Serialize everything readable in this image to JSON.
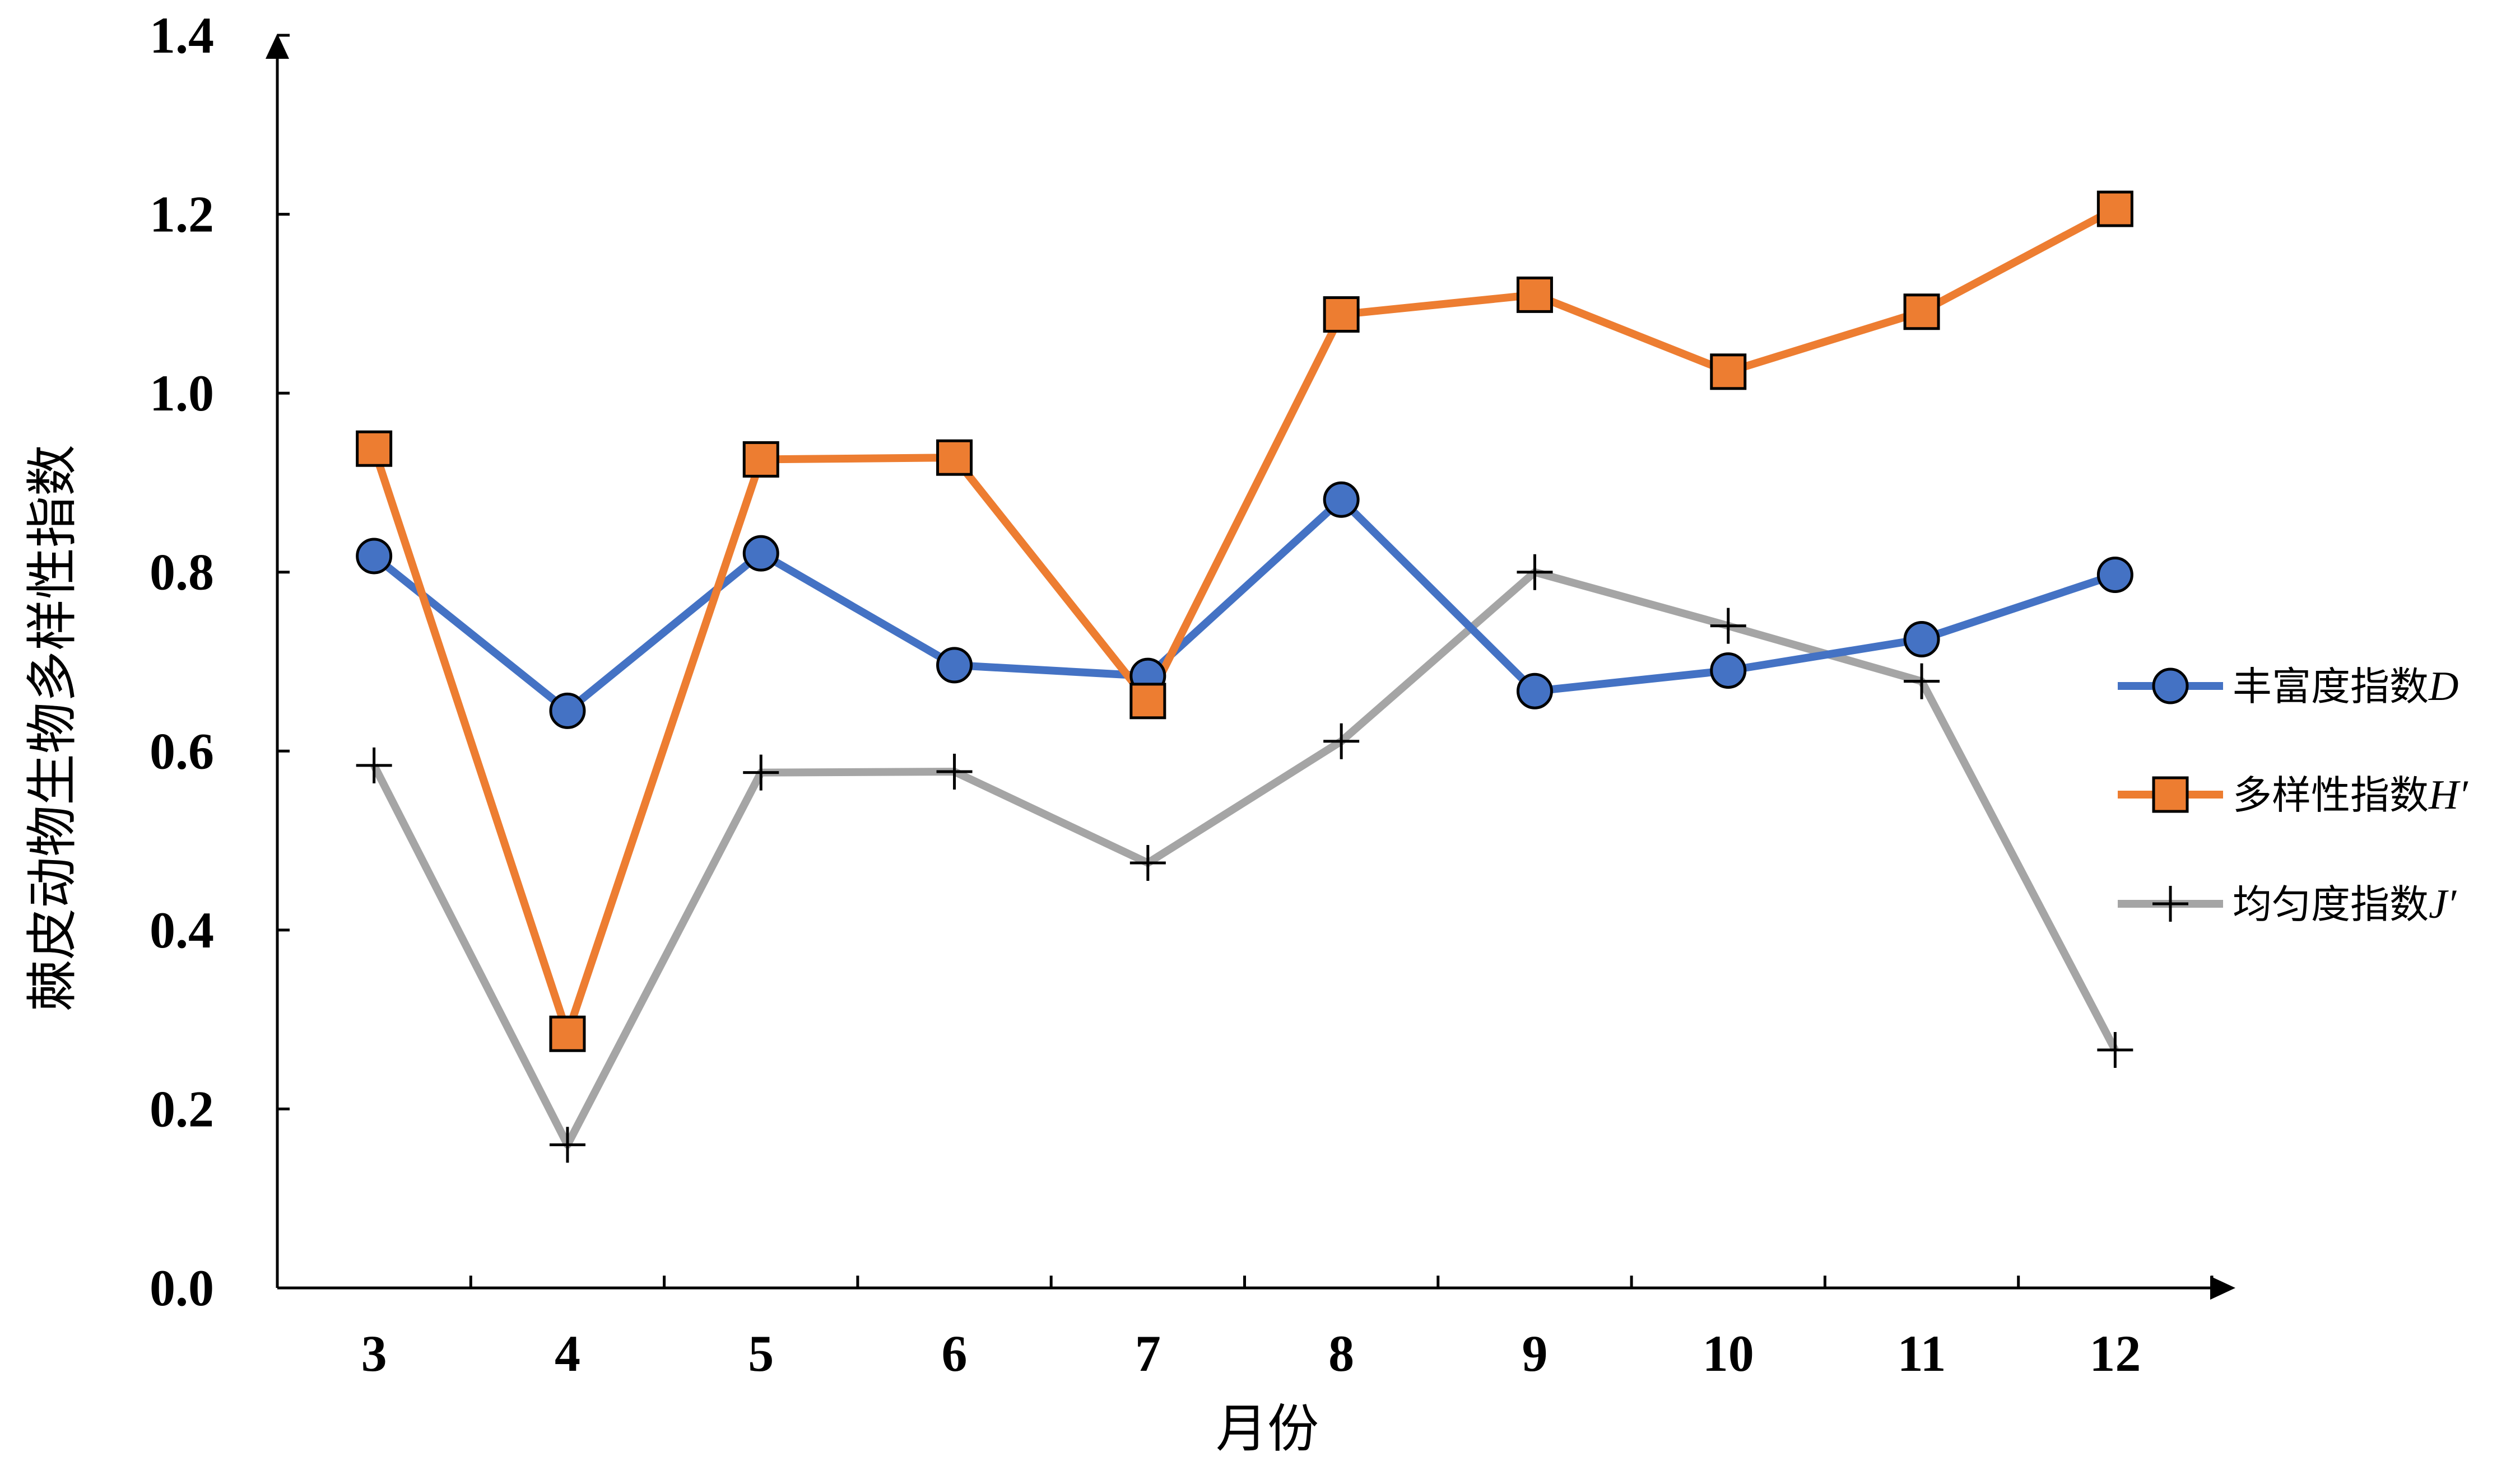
{
  "chart_data": {
    "type": "line",
    "xlabel": "月份",
    "ylabel": "棘皮动物生物多样性指数",
    "categories": [
      "3",
      "4",
      "5",
      "6",
      "7",
      "8",
      "9",
      "10",
      "11",
      "12"
    ],
    "ylim": [
      0,
      1.4
    ],
    "yticks": [
      "0.0",
      "0.2",
      "0.4",
      "0.6",
      "0.8",
      "1.0",
      "1.2",
      "1.4"
    ],
    "grid": false,
    "legend_position": "right",
    "series": [
      {
        "name": "丰富度指数D",
        "label_text": "丰富度指数",
        "label_symbol": "D",
        "marker": "circle",
        "color": "#4472C4",
        "values": [
          0.818,
          0.645,
          0.821,
          0.696,
          0.684,
          0.881,
          0.667,
          0.69,
          0.725,
          0.797
        ]
      },
      {
        "name": "多样性指数H′",
        "label_text": "多样性指数",
        "label_symbol": "H′",
        "marker": "square",
        "color": "#ED7D31",
        "values": [
          0.938,
          0.284,
          0.926,
          0.928,
          0.656,
          1.088,
          1.11,
          1.024,
          1.091,
          1.206
        ]
      },
      {
        "name": "均匀度指数J′",
        "label_text": "均匀度指数",
        "label_symbol": "J′",
        "marker": "plus",
        "color": "#A5A5A5",
        "values": [
          0.584,
          0.16,
          0.576,
          0.577,
          0.475,
          0.611,
          0.8,
          0.74,
          0.678,
          0.266
        ]
      }
    ]
  }
}
